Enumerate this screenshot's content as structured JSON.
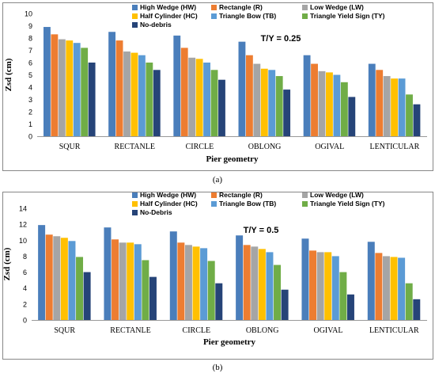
{
  "colors": {
    "series": [
      "#4A7EBB",
      "#ED7D31",
      "#A5A5A5",
      "#FFC000",
      "#5B9BD5",
      "#70AD47",
      "#264478"
    ],
    "frame": "#888888",
    "axis": "#999999",
    "text": "#000000"
  },
  "chart_data": [
    {
      "type": "bar",
      "panel_label": "(a)",
      "annotation": "T/Y = 0.25",
      "xlabel": "Pier geometry",
      "ylabel": "Zsd (cm)",
      "ylim": [
        0,
        10
      ],
      "yticks": [
        0,
        1,
        2,
        3,
        4,
        5,
        6,
        7,
        8,
        9,
        10
      ],
      "grid": false,
      "legend_position": "top",
      "categories": [
        "SQUR",
        "RECTANLE",
        "CIRCLE",
        "OBLONG",
        "OGIVAL",
        "LENTICULAR"
      ],
      "series": [
        {
          "name": "High Wedge (HW)",
          "values": [
            8.9,
            8.5,
            8.2,
            7.7,
            6.6,
            5.9
          ]
        },
        {
          "name": "Rectangle (R)",
          "values": [
            8.3,
            7.8,
            7.2,
            6.6,
            5.9,
            5.4
          ]
        },
        {
          "name": "Low Wedge (LW)",
          "values": [
            7.9,
            6.9,
            6.4,
            5.9,
            5.3,
            4.9
          ]
        },
        {
          "name": "Half Cylinder (HC)",
          "values": [
            7.8,
            6.8,
            6.3,
            5.5,
            5.2,
            4.7
          ]
        },
        {
          "name": "Triangle Bow (TB)",
          "values": [
            7.6,
            6.6,
            6.0,
            5.4,
            5.0,
            4.7
          ]
        },
        {
          "name": "Triangle Yield Sign (TY)",
          "values": [
            7.2,
            6.0,
            5.4,
            4.9,
            4.4,
            3.4
          ]
        },
        {
          "name": "No-debris",
          "values": [
            6.0,
            5.4,
            4.6,
            3.8,
            3.2,
            2.6
          ]
        }
      ]
    },
    {
      "type": "bar",
      "panel_label": "(b)",
      "annotation": "T/Y = 0.5",
      "xlabel": "Pier geometry",
      "ylabel": "Zsd (cm)",
      "ylim": [
        0,
        14
      ],
      "yticks": [
        0,
        2,
        4,
        6,
        8,
        10,
        12,
        14
      ],
      "grid": false,
      "legend_position": "top",
      "categories": [
        "SQUR",
        "RECTANLE",
        "CIRCLE",
        "OBLONG",
        "OGIVAL",
        "LENTICULAR"
      ],
      "series": [
        {
          "name": "High Wedge (HW)",
          "values": [
            11.9,
            11.6,
            11.1,
            10.6,
            10.2,
            9.8
          ]
        },
        {
          "name": "Rectangle (R)",
          "values": [
            10.7,
            10.1,
            9.7,
            9.4,
            8.7,
            8.4
          ]
        },
        {
          "name": "Low Wedge (LW)",
          "values": [
            10.5,
            9.7,
            9.4,
            9.2,
            8.5,
            8.0
          ]
        },
        {
          "name": "Half Cylinder (HC)",
          "values": [
            10.3,
            9.7,
            9.2,
            8.9,
            8.5,
            7.9
          ]
        },
        {
          "name": "Triangle Bow (TB)",
          "values": [
            9.9,
            9.5,
            9.0,
            8.5,
            8.0,
            7.8
          ]
        },
        {
          "name": "Triangle Yield Sign (TY)",
          "values": [
            7.9,
            7.5,
            7.4,
            6.9,
            6.0,
            4.6
          ]
        },
        {
          "name": "No-Debris",
          "values": [
            6.0,
            5.4,
            4.6,
            3.8,
            3.2,
            2.6
          ]
        }
      ]
    }
  ]
}
